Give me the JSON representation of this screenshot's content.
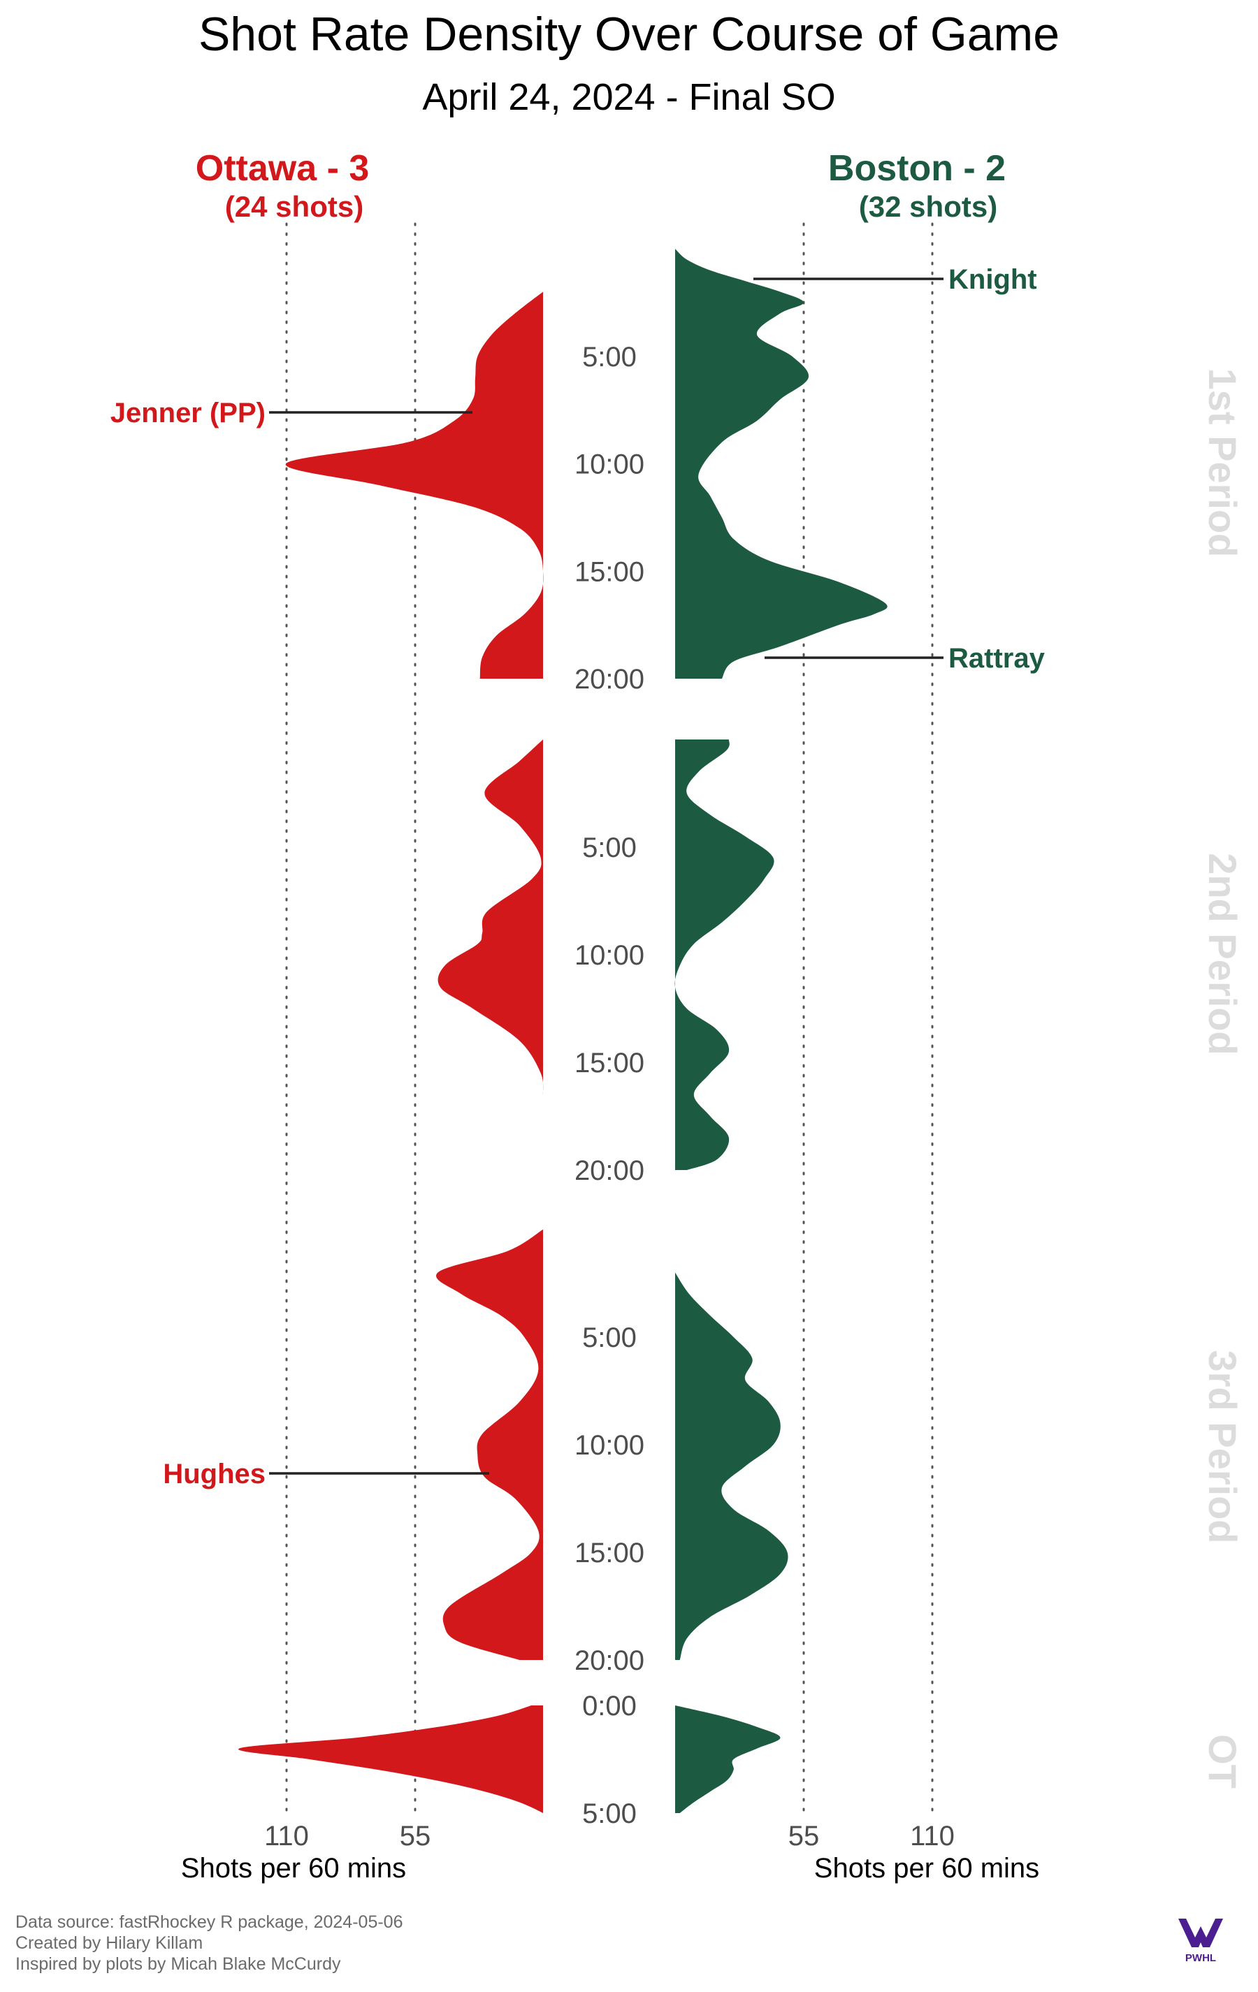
{
  "title": "Shot Rate Density Over Course of Game",
  "subtitle": "April 24, 2024 - Final SO",
  "teams": {
    "away": {
      "label": "Ottawa - 3",
      "shots_label": "(24 shots)",
      "color": "#d3181b"
    },
    "home": {
      "label": "Boston - 2",
      "shots_label": "(32 shots)",
      "color": "#1d5a42"
    }
  },
  "x_axis": {
    "label": "Shots per 60 mins",
    "ticks": [
      "110",
      "55"
    ],
    "tick_values": [
      110,
      55
    ]
  },
  "time_ticks": {
    "regulation": [
      "5:00",
      "10:00",
      "15:00",
      "20:00"
    ],
    "ot": [
      "0:00",
      "5:00"
    ]
  },
  "periods": [
    "1st Period",
    "2nd Period",
    "3rd Period",
    "OT"
  ],
  "annotations": [
    {
      "label": "Knight",
      "team": "home",
      "period": 0,
      "minute": 1.4
    },
    {
      "label": "Jenner (PP)",
      "team": "away",
      "period": 0,
      "minute": 7.6
    },
    {
      "label": "Rattray",
      "team": "home",
      "period": 0,
      "minute": 18.9
    },
    {
      "label": "Hughes",
      "team": "away",
      "period": 2,
      "minute": 11.0
    }
  ],
  "caption": [
    "Data source: fastRhockey R package, 2024-05-06",
    "Created by Hilary Killam",
    "Inspired by plots by Micah Blake McCurdy"
  ],
  "logo": {
    "text": "PWHL",
    "color": "#4b1f8f"
  },
  "chart_data": {
    "type": "area",
    "title": "Shot Rate Density Over Course of Game",
    "subtitle": "April 24, 2024 - Final SO",
    "xlabel": "Shots per 60 mins",
    "ylabel": "",
    "value_range": [
      0,
      150
    ],
    "time_unit": "minutes",
    "grid": "dotted vertical lines at 55 and 110",
    "series": [
      {
        "name": "Ottawa - 3",
        "side": "left",
        "periods": [
          {
            "period": "1st Period",
            "length": 20,
            "start": 2.0,
            "points": [
              [
                2.0,
                0
              ],
              [
                3.0,
                12
              ],
              [
                4.0,
                22
              ],
              [
                5.0,
                28
              ],
              [
                6.0,
                29
              ],
              [
                7.0,
                30
              ],
              [
                8.0,
                38
              ],
              [
                9.0,
                58
              ],
              [
                10.0,
                110
              ],
              [
                11.0,
                70
              ],
              [
                12.0,
                30
              ],
              [
                13.0,
                10
              ],
              [
                14.0,
                2
              ],
              [
                15.0,
                0
              ],
              [
                16.0,
                1
              ],
              [
                17.0,
                8
              ],
              [
                18.0,
                20
              ],
              [
                19.0,
                26
              ],
              [
                20.0,
                27
              ]
            ]
          },
          {
            "period": "2nd Period",
            "length": 20,
            "start": 0,
            "points": [
              [
                0,
                0
              ],
              [
                1,
                10
              ],
              [
                2.5,
                25
              ],
              [
                4,
                10
              ],
              [
                5.5,
                1
              ],
              [
                6.5,
                5
              ],
              [
                8,
                24
              ],
              [
                9,
                26
              ],
              [
                9.5,
                28
              ],
              [
                10.5,
                42
              ],
              [
                11.5,
                44
              ],
              [
                12.5,
                30
              ],
              [
                14,
                10
              ],
              [
                15.5,
                1
              ],
              [
                16.5,
                0
              ]
            ]
          },
          {
            "period": "3rd Period",
            "length": 20,
            "start": 0,
            "points": [
              [
                0,
                0
              ],
              [
                1,
                15
              ],
              [
                2,
                45
              ],
              [
                3,
                35
              ],
              [
                4,
                18
              ],
              [
                5,
                8
              ],
              [
                6.5,
                2
              ],
              [
                8,
                10
              ],
              [
                9.5,
                26
              ],
              [
                10.5,
                28
              ],
              [
                11.5,
                25
              ],
              [
                12.5,
                12
              ],
              [
                14,
                2
              ],
              [
                15,
                5
              ],
              [
                16,
                18
              ],
              [
                17.5,
                40
              ],
              [
                18.5,
                42
              ],
              [
                19.2,
                35
              ],
              [
                20,
                10
              ]
            ]
          },
          {
            "period": "OT",
            "length": 5,
            "start": 0,
            "points": [
              [
                0,
                5
              ],
              [
                0.5,
                20
              ],
              [
                1,
                45
              ],
              [
                1.5,
                80
              ],
              [
                2,
                130
              ],
              [
                2.5,
                100
              ],
              [
                3,
                70
              ],
              [
                3.5,
                45
              ],
              [
                4,
                25
              ],
              [
                4.5,
                10
              ],
              [
                5,
                0
              ]
            ]
          }
        ]
      },
      {
        "name": "Boston - 2",
        "side": "right",
        "periods": [
          {
            "period": "1st Period",
            "length": 20,
            "start": 0,
            "points": [
              [
                0,
                0
              ],
              [
                0.5,
                5
              ],
              [
                1,
                15
              ],
              [
                1.5,
                30
              ],
              [
                2,
                45
              ],
              [
                2.5,
                55
              ],
              [
                3,
                45
              ],
              [
                4,
                35
              ],
              [
                5,
                50
              ],
              [
                6,
                57
              ],
              [
                7,
                45
              ],
              [
                8,
                35
              ],
              [
                9,
                20
              ],
              [
                10.5,
                10
              ],
              [
                11.5,
                15
              ],
              [
                12.5,
                20
              ],
              [
                13.5,
                25
              ],
              [
                14.5,
                40
              ],
              [
                15.5,
                70
              ],
              [
                16.5,
                90
              ],
              [
                17,
                85
              ],
              [
                17.5,
                70
              ],
              [
                18.5,
                45
              ],
              [
                19.2,
                25
              ],
              [
                20,
                20
              ]
            ]
          },
          {
            "period": "2nd Period",
            "length": 20,
            "start": 0,
            "points": [
              [
                0,
                23
              ],
              [
                0.5,
                22
              ],
              [
                1.5,
                10
              ],
              [
                2.5,
                5
              ],
              [
                3.5,
                15
              ],
              [
                4.5,
                30
              ],
              [
                5.5,
                42
              ],
              [
                6.5,
                38
              ],
              [
                7.5,
                30
              ],
              [
                8.5,
                20
              ],
              [
                9.5,
                8
              ],
              [
                10.5,
                2
              ],
              [
                11.5,
                0
              ],
              [
                12.5,
                5
              ],
              [
                13.5,
                18
              ],
              [
                14.5,
                23
              ],
              [
                15.5,
                15
              ],
              [
                16.5,
                8
              ],
              [
                17.5,
                15
              ],
              [
                18.5,
                23
              ],
              [
                19.5,
                18
              ],
              [
                20,
                5
              ]
            ]
          },
          {
            "period": "3rd Period",
            "length": 20,
            "start": 0,
            "points": [
              [
                2,
                0
              ],
              [
                3,
                6
              ],
              [
                4,
                15
              ],
              [
                5,
                25
              ],
              [
                6,
                33
              ],
              [
                7,
                30
              ],
              [
                8,
                40
              ],
              [
                9,
                45
              ],
              [
                10,
                42
              ],
              [
                11,
                30
              ],
              [
                12,
                20
              ],
              [
                13,
                25
              ],
              [
                14,
                40
              ],
              [
                15,
                48
              ],
              [
                16,
                45
              ],
              [
                17,
                32
              ],
              [
                18,
                15
              ],
              [
                19,
                5
              ],
              [
                20,
                2
              ]
            ]
          },
          {
            "period": "OT",
            "length": 5,
            "start": 0,
            "points": [
              [
                0,
                0
              ],
              [
                0.5,
                20
              ],
              [
                1,
                35
              ],
              [
                1.5,
                45
              ],
              [
                2,
                35
              ],
              [
                2.5,
                25
              ],
              [
                3,
                25
              ],
              [
                3.5,
                22
              ],
              [
                4,
                15
              ],
              [
                4.5,
                8
              ],
              [
                5,
                2
              ]
            ]
          }
        ]
      }
    ],
    "annotations": [
      "Knight",
      "Jenner (PP)",
      "Rattray",
      "Hughes"
    ]
  }
}
